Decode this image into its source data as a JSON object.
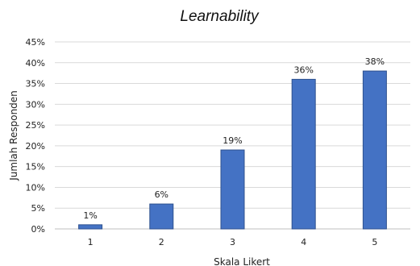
{
  "chart_data": {
    "type": "bar",
    "title": "Learnability",
    "xlabel": "Skala Likert",
    "ylabel": "Jumlah Responden",
    "categories": [
      "1",
      "2",
      "3",
      "4",
      "5"
    ],
    "values": [
      1,
      6,
      19,
      36,
      38
    ],
    "data_labels": [
      "1%",
      "6%",
      "19%",
      "36%",
      "38%"
    ],
    "ylim": [
      0,
      45
    ],
    "yticks": [
      0,
      5,
      10,
      15,
      20,
      25,
      30,
      35,
      40,
      45
    ],
    "ytick_labels": [
      "0%",
      "5%",
      "10%",
      "15%",
      "20%",
      "25%",
      "30%",
      "35%",
      "40%",
      "45%"
    ],
    "grid": true,
    "legend": "none",
    "colors": {
      "bar": "#4472c4",
      "bar_border": "#2f528f",
      "grid": "#d9d9d9"
    }
  }
}
